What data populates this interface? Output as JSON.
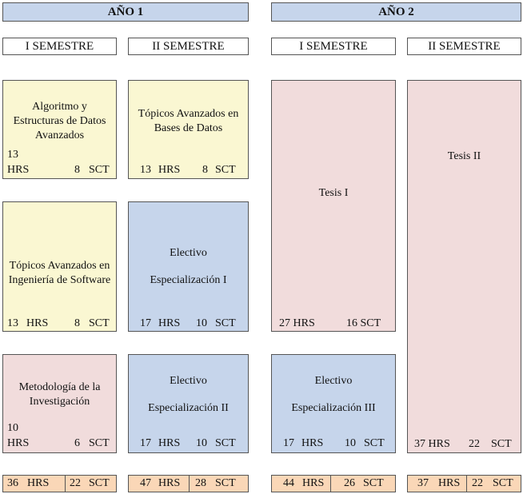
{
  "years": {
    "y1": "AÑO 1",
    "y2": "AÑO 2"
  },
  "semesters": {
    "y1s1": "I SEMESTRE",
    "y1s2": "II SEMESTRE",
    "y2s1": "I SEMESTRE",
    "y2s2": "II SEMESTRE"
  },
  "courses": {
    "algoritmo": {
      "title": "Algoritmo y Estructuras de Datos Avanzados",
      "hrs_num": "13",
      "hrs": "HRS",
      "sct": "8",
      "sct_unit": "SCT"
    },
    "topicos_bd": {
      "title": "Tópicos Avanzados en Bases de Datos",
      "hrs_num": "13",
      "hrs": "HRS",
      "sct": "8",
      "sct_unit": "SCT"
    },
    "topicos_sw": {
      "title": "Tópicos Avanzados en Ingeniería de Software",
      "hrs_num": "13",
      "hrs": "HRS",
      "sct": "8",
      "sct_unit": "SCT"
    },
    "electivo1": {
      "title_a": "Electivo",
      "title_b": "Especialización I",
      "hrs_num": "17",
      "hrs": "HRS",
      "sct": "10",
      "sct_unit": "SCT"
    },
    "metodologia": {
      "title": "Metodología de la Investigación",
      "hrs_num": "10",
      "hrs": "HRS",
      "sct": "6",
      "sct_unit": "SCT"
    },
    "electivo2": {
      "title_a": "Electivo",
      "title_b": "Especialización II",
      "hrs_num": "17",
      "hrs": "HRS",
      "sct": "10",
      "sct_unit": "SCT"
    },
    "tesis1": {
      "title": "Tesis I",
      "hrs_label": "27 HRS",
      "sct_label": "16 SCT"
    },
    "electivo3": {
      "title_a": "Electivo",
      "title_b": "Especialización III",
      "hrs_num": "17",
      "hrs": "HRS",
      "sct": "10",
      "sct_unit": "SCT"
    },
    "tesis2": {
      "title": "Tesis II",
      "hrs_label": "37 HRS",
      "sct": "22",
      "sct_unit": "SCT"
    }
  },
  "totals": {
    "y1s1": {
      "hrs_num": "36",
      "hrs": "HRS",
      "sct": "22",
      "sct_unit": "SCT"
    },
    "y1s2": {
      "hrs_num": "47",
      "hrs": "HRS",
      "sct": "28",
      "sct_unit": "SCT"
    },
    "y2s1": {
      "hrs_num": "44",
      "hrs": "HRS",
      "sct": "26",
      "sct_unit": "SCT"
    },
    "y2s2": {
      "hrs_num": "37",
      "hrs": "HRS",
      "sct": "22",
      "sct_unit": "SCT"
    }
  },
  "colors": {
    "year_header": "#c6d5eb",
    "core_course": "#faf7d2",
    "elective": "#c6d5eb",
    "research": "#f1dcdc",
    "totals": "#fad7b7"
  }
}
